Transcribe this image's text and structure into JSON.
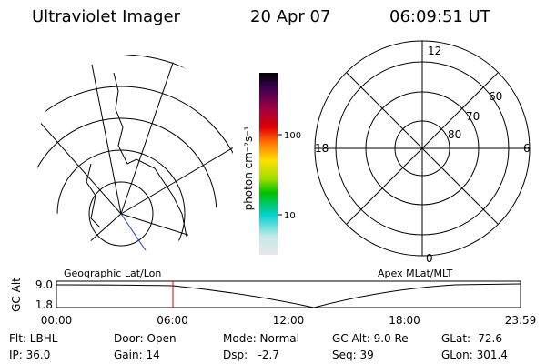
{
  "header": {
    "title": "Ultraviolet Imager",
    "date": "20 Apr 07",
    "time": "06:09:51 UT"
  },
  "colorbar": {
    "label": "photon cm⁻²s⁻¹",
    "ticks": [
      "100",
      "10"
    ]
  },
  "polar_plot": {
    "mlt_labels": [
      "12",
      "18",
      "6",
      "0"
    ],
    "mlat_labels": [
      "60",
      "70",
      "80"
    ]
  },
  "orbit_plot": {
    "left_title": "Geographic Lat/Lon",
    "right_title": "Apex MLat/MLT",
    "y_label": "GC Alt",
    "y_ticks": [
      "9.0",
      "1.8"
    ],
    "x_ticks": [
      "00:00",
      "06:00",
      "12:00",
      "18:00",
      "23:59"
    ]
  },
  "footer": {
    "rows": [
      [
        "Flt: LBHL",
        "Door: Open",
        "Mode: Normal",
        "GC Alt: 9.0 Re",
        "GLat: -72.6"
      ],
      [
        "IP: 36.0",
        "Gain: 14",
        "Dsp:   -2.7",
        "Seq: 39",
        "GLon: 301.4"
      ]
    ]
  }
}
